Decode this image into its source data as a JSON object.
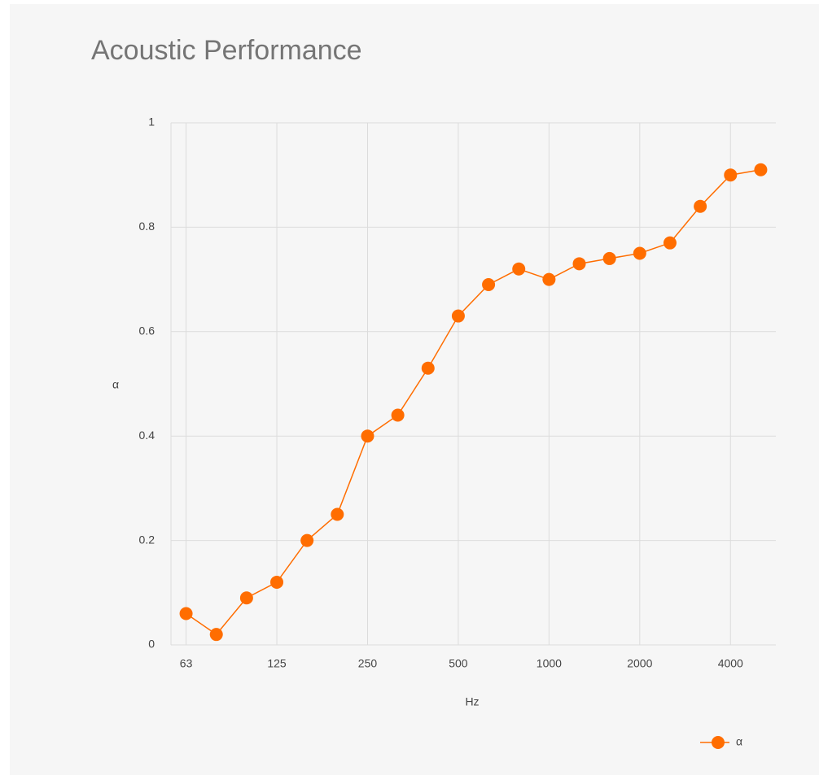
{
  "chart_data": {
    "type": "line",
    "title": "Acoustic Performance",
    "x_label": "Hz",
    "y_label": "α",
    "categories": [
      "63",
      null,
      null,
      "125",
      null,
      null,
      "250",
      null,
      null,
      "500",
      null,
      null,
      "1000",
      null,
      null,
      "2000",
      null,
      null,
      "4000",
      null
    ],
    "series": [
      {
        "name": "α",
        "color": "#ff6d00",
        "values": [
          0.06,
          0.02,
          0.09,
          0.12,
          0.2,
          0.25,
          0.4,
          0.44,
          0.53,
          0.63,
          0.69,
          0.72,
          0.7,
          0.73,
          0.74,
          0.75,
          0.77,
          0.84,
          0.9,
          0.91
        ]
      }
    ],
    "ylim": [
      0,
      1
    ],
    "yticks": [
      0,
      0.2,
      0.4,
      0.6,
      0.8,
      1
    ],
    "grid": true,
    "legend": "bottom-right"
  }
}
